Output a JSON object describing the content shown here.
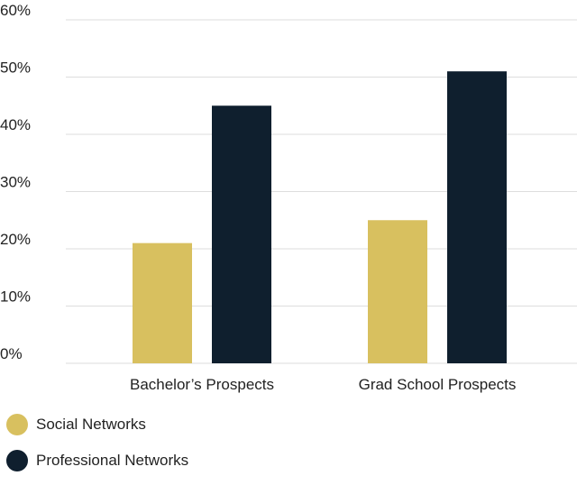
{
  "chart_data": {
    "type": "bar",
    "categories": [
      "Bachelor’s Prospects",
      "Grad School Prospects"
    ],
    "series": [
      {
        "name": "Social Networks",
        "color": "#d8c05f",
        "values": [
          21,
          25
        ]
      },
      {
        "name": "Professional Networks",
        "color": "#0f1f2e",
        "values": [
          45,
          51
        ]
      }
    ],
    "ylim": [
      0,
      60
    ],
    "yticks": [
      0,
      10,
      20,
      30,
      40,
      50,
      60
    ],
    "ytick_labels": [
      "0%",
      "10%",
      "20%",
      "30%",
      "40%",
      "50%",
      "60%"
    ],
    "grid": true,
    "legend_position": "bottom-left"
  }
}
